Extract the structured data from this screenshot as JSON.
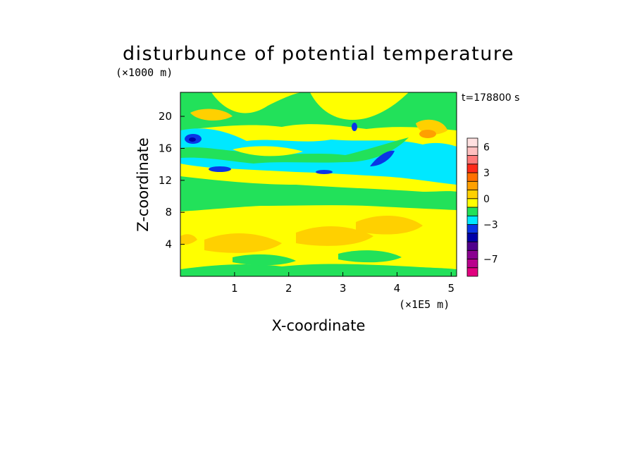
{
  "chart_data": {
    "type": "heatmap",
    "title": "disturbunce of potential temperature",
    "xlabel": "X-coordinate",
    "ylabel": "Z-coordinate",
    "x_unit": "(×1E5 m)",
    "y_unit": "(×1000 m)",
    "time_label": "t=178800 s",
    "xlim": [
      0,
      5.1
    ],
    "ylim": [
      0,
      23
    ],
    "x_ticks": [
      1,
      2,
      3,
      4,
      5
    ],
    "y_ticks": [
      4,
      8,
      12,
      16,
      20
    ],
    "colorbar": {
      "levels": [
        -9,
        -8,
        -7,
        -6,
        -5,
        -4,
        -3,
        -2,
        -1,
        0,
        1,
        2,
        3,
        4,
        5,
        6,
        7
      ],
      "labels": [
        -7,
        -3,
        0,
        3,
        6
      ],
      "colors": [
        "#e2007f",
        "#b9008c",
        "#8a0090",
        "#50008c",
        "#0000a8",
        "#0a35e6",
        "#00e8ff",
        "#22e15a",
        "#ffff00",
        "#ffd000",
        "#ffa000",
        "#ff7000",
        "#ff2a1a",
        "#ff7a7a",
        "#ffc0c0",
        "#ffe0e0"
      ]
    }
  }
}
